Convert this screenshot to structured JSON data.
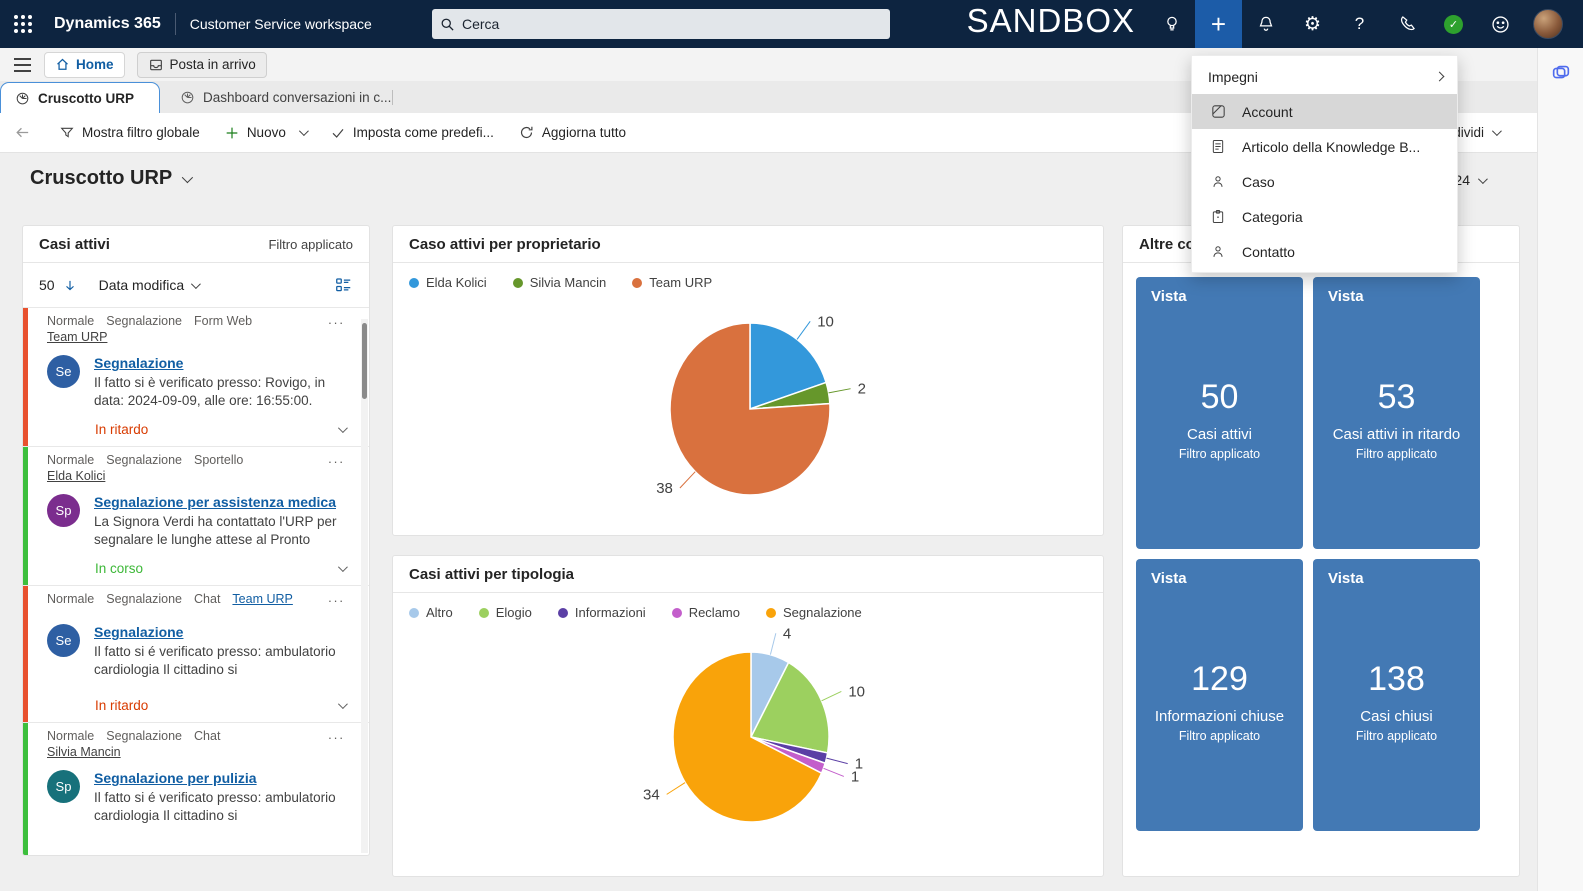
{
  "topbar": {
    "brand": "Dynamics 365",
    "app": "Customer Service workspace",
    "search_placeholder": "Cerca",
    "environment": "SANDBOX",
    "icons": [
      "lightbulb-icon",
      "plus-icon",
      "bell-icon",
      "gear-icon",
      "help-icon",
      "phone-icon",
      "presence-available-icon",
      "smiley-feedback-icon",
      "user-avatar"
    ]
  },
  "session_tabs": {
    "home": "Home",
    "inbox": "Posta in arrivo"
  },
  "app_tabs": {
    "active": "Cruscotto URP",
    "inactive": "Dashboard conversazioni in c..."
  },
  "toolbar": {
    "show_global_filter": "Mostra filtro globale",
    "new_label": "Nuovo",
    "set_default": "Imposta come predefi...",
    "refresh_all": "Aggiorna tutto",
    "share_partial": "dividi"
  },
  "page": {
    "title": "Cruscotto URP",
    "date_partial": "24"
  },
  "new_menu": {
    "items": [
      {
        "label": "Impegni",
        "icon": "",
        "submenu": true,
        "highlighted": false
      },
      {
        "label": "Account",
        "icon": "account-icon",
        "submenu": false,
        "highlighted": true
      },
      {
        "label": "Articolo della Knowledge B...",
        "icon": "knowledge-article-icon",
        "submenu": false,
        "highlighted": false
      },
      {
        "label": "Caso",
        "icon": "case-icon",
        "submenu": false,
        "highlighted": false
      },
      {
        "label": "Categoria",
        "icon": "category-icon",
        "submenu": false,
        "highlighted": false
      },
      {
        "label": "Contatto",
        "icon": "contact-icon",
        "submenu": false,
        "highlighted": false
      }
    ]
  },
  "cases": {
    "header": "Casi attivi",
    "filter_label": "Filtro applicato",
    "count": "50",
    "sort_label": "Data modifica",
    "items": [
      {
        "tags": [
          "Normale",
          "Segnalazione",
          "Form Web"
        ],
        "owner": "Team URP",
        "owner_inline": false,
        "avatar": "Se",
        "avatar_color": "#2E5FA3",
        "bar_color": "#E8512E",
        "title": "Segnalazione",
        "body": "Il fatto si è verificato presso: Rovigo, in data: 2024-09-09, alle ore: 16:55:00.",
        "status": "In ritardo",
        "status_color": "#D83B01",
        "menu_dots": "...",
        "has_status": true
      },
      {
        "tags": [
          "Normale",
          "Segnalazione",
          "Sportello"
        ],
        "owner": "Elda Kolici",
        "owner_inline": false,
        "avatar": "Sp",
        "avatar_color": "#7B2D8E",
        "bar_color": "#3DBF3D",
        "title": "Segnalazione per assistenza medica",
        "body": "La Signora Verdi ha contattato l'URP per segnalare le lunghe attese al Pronto",
        "status": "In corso",
        "status_color": "#3DB838",
        "menu_dots": "...",
        "has_status": true
      },
      {
        "tags": [
          "Normale",
          "Segnalazione",
          "Chat"
        ],
        "owner": "Team URP",
        "owner_inline": true,
        "avatar": "Se",
        "avatar_color": "#2E5FA3",
        "bar_color": "#E8512E",
        "title": "Segnalazione",
        "body": "Il fatto si é verificato presso: ambulatorio cardiologia Il cittadino si",
        "status": "In ritardo",
        "status_color": "#D83B01",
        "menu_dots": "...",
        "has_status": true
      },
      {
        "tags": [
          "Normale",
          "Segnalazione",
          "Chat"
        ],
        "owner": "Silvia Mancin",
        "owner_inline": false,
        "avatar": "Sp",
        "avatar_color": "#17717B",
        "bar_color": "#3DBF3D",
        "title": "Segnalazione per pulizia",
        "body": "Il fatto si é verificato presso: ambulatorio cardiologia Il cittadino si",
        "status": "",
        "status_color": "",
        "menu_dots": "...",
        "has_status": false
      }
    ]
  },
  "chart_data": [
    {
      "type": "pie",
      "title": "Caso attivi per proprietario",
      "labels": [
        "Elda Kolici",
        "Silvia Mancin",
        "Team URP"
      ],
      "values": [
        10,
        2,
        38
      ],
      "colors": [
        "#3398DB",
        "#66972B",
        "#D9713E"
      ],
      "total": 50,
      "start_angle_deg": 0,
      "direction": "clockwise",
      "legend_position": "top",
      "data_labels": [
        "10",
        "2",
        "38"
      ]
    },
    {
      "type": "pie",
      "title": "Casi attivi per tipologia",
      "labels": [
        "Altro",
        "Elogio",
        "Informazioni",
        "Reclamo",
        "Segnalazione"
      ],
      "values": [
        4,
        10,
        1,
        1,
        34
      ],
      "colors": [
        "#A7C9EA",
        "#9CD05F",
        "#5B3FA5",
        "#C35ECB",
        "#F9A30A"
      ],
      "total": 50,
      "start_angle_deg": 0,
      "direction": "clockwise",
      "legend_position": "top",
      "data_labels": [
        "4",
        "10",
        "1",
        "1",
        "34"
      ]
    }
  ],
  "tiles": {
    "header": "Altre cod",
    "tile_color": "#4379B4",
    "items": [
      {
        "kicker": "Vista",
        "value": "50",
        "label": "Casi attivi",
        "sublabel": "Filtro applicato"
      },
      {
        "kicker": "Vista",
        "value": "53",
        "label": "Casi attivi in ritardo",
        "sublabel": "Filtro applicato"
      },
      {
        "kicker": "Vista",
        "value": "129",
        "label": "Informazioni chiuse",
        "sublabel": "Filtro applicato"
      },
      {
        "kicker": "Vista",
        "value": "138",
        "label": "Casi chiusi",
        "sublabel": "Filtro applicato"
      }
    ]
  }
}
